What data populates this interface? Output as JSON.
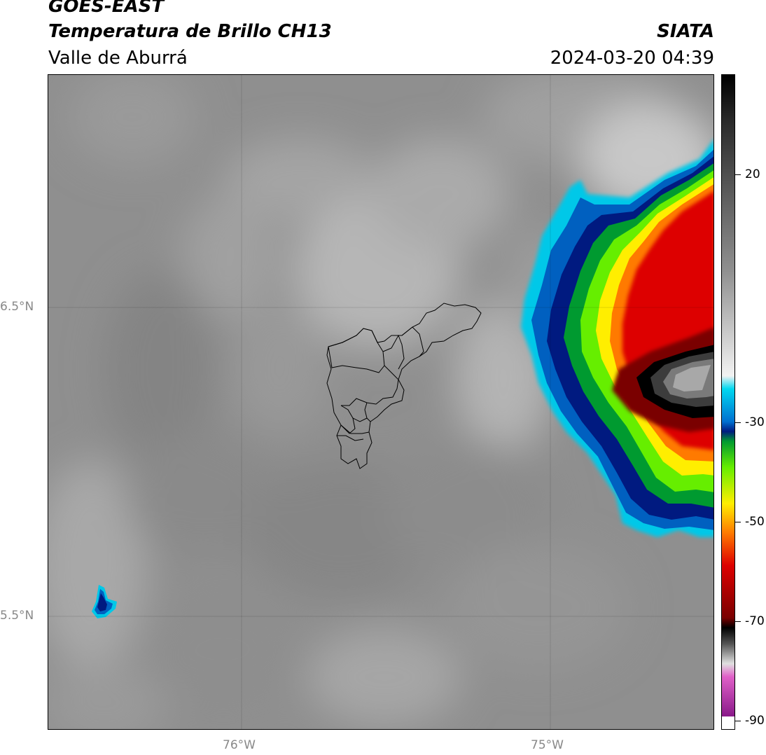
{
  "header": {
    "satellite": "GOES-EAST",
    "product": "Temperatura de Brillo CH13",
    "region": "Valle de Aburrá",
    "organization": "SIATA",
    "datetime": "2024-03-20 04:39"
  },
  "map": {
    "lat_labels": [
      "6.5°N",
      "5.5°N"
    ],
    "lon_labels": [
      "76°W",
      "75°W"
    ],
    "background_gray": "#8f8f8f"
  },
  "colorbar": {
    "tick_labels": [
      "20",
      "-30",
      "-50",
      "-70",
      "-90"
    ],
    "stops": [
      {
        "color": "#ffffff"
      },
      {
        "color": "#8a1a8a"
      },
      {
        "color": "#e060c8"
      },
      {
        "color": "#e0e0e0"
      },
      {
        "color": "#555555"
      },
      {
        "color": "#000000"
      },
      {
        "color": "#7a0000"
      },
      {
        "color": "#dd0000"
      },
      {
        "color": "#ff7a00"
      },
      {
        "color": "#ffee00"
      },
      {
        "color": "#66ee00"
      },
      {
        "color": "#009a30"
      },
      {
        "color": "#001a80"
      },
      {
        "color": "#0070d0"
      },
      {
        "color": "#00d8f0"
      },
      {
        "color": "#f2f2f2"
      },
      {
        "color": "#909090"
      },
      {
        "color": "#2a2a2a"
      },
      {
        "color": "#000000"
      }
    ]
  }
}
